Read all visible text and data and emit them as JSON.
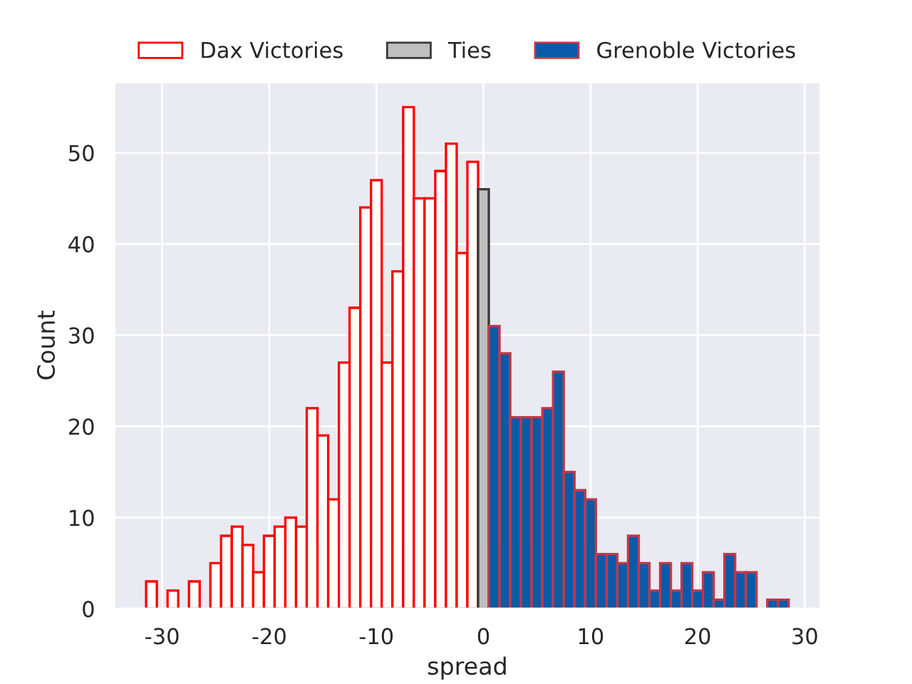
{
  "chart_data": {
    "type": "histogram",
    "xlabel": "spread",
    "ylabel": "Count",
    "bins": [
      -31.5,
      -30.5,
      -29.5,
      -28.5,
      -27.5,
      -26.5,
      -25.5,
      -24.5,
      -23.5,
      -22.5,
      -21.5,
      -20.5,
      -19.5,
      -18.5,
      -17.5,
      -16.5,
      -15.5,
      -14.5,
      -13.5,
      -12.5,
      -11.5,
      -10.5,
      -9.5,
      -8.5,
      -7.5,
      -6.5,
      -5.5,
      -4.5,
      -3.5,
      -2.5,
      -1.5,
      -0.5,
      0.5,
      1.5,
      2.5,
      3.5,
      4.5,
      5.5,
      6.5,
      7.5,
      8.5,
      9.5,
      10.5,
      11.5,
      12.5,
      13.5,
      14.5,
      15.5,
      16.5,
      17.5,
      18.5,
      19.5,
      20.5,
      21.5,
      22.5,
      23.5,
      24.5,
      25.5,
      26.5,
      27.5,
      28.5
    ],
    "series": [
      {
        "name": "Dax Victories",
        "color": "#ff0000",
        "values": [
          3,
          null,
          2,
          null,
          3,
          null,
          5,
          8,
          9,
          7,
          4,
          8,
          9,
          10,
          9,
          22,
          19,
          12,
          27,
          33,
          44,
          47,
          27,
          37,
          55,
          45,
          45,
          48,
          51,
          39,
          49,
          null,
          null,
          null,
          null,
          null,
          null,
          null,
          null,
          null,
          null,
          null,
          null,
          null,
          null,
          null,
          null,
          null,
          null,
          null,
          null,
          null,
          null,
          null,
          null,
          null,
          null,
          null,
          null,
          null
        ]
      },
      {
        "name": "Ties",
        "color": "#bfbfbf",
        "values": [
          null,
          null,
          null,
          null,
          null,
          null,
          null,
          null,
          null,
          null,
          null,
          null,
          null,
          null,
          null,
          null,
          null,
          null,
          null,
          null,
          null,
          null,
          null,
          null,
          null,
          null,
          null,
          null,
          null,
          null,
          null,
          46,
          null,
          null,
          null,
          null,
          null,
          null,
          null,
          null,
          null,
          null,
          null,
          null,
          null,
          null,
          null,
          null,
          null,
          null,
          null,
          null,
          null,
          null,
          null,
          null,
          null,
          null,
          null,
          null
        ]
      },
      {
        "name": "Grenoble Victories",
        "color": "#0b5aa8",
        "values": [
          null,
          null,
          null,
          null,
          null,
          null,
          null,
          null,
          null,
          null,
          null,
          null,
          null,
          null,
          null,
          null,
          null,
          null,
          null,
          null,
          null,
          null,
          null,
          null,
          null,
          null,
          null,
          null,
          null,
          null,
          null,
          null,
          31,
          28,
          21,
          21,
          21,
          22,
          26,
          15,
          13,
          12,
          6,
          6,
          5,
          8,
          5,
          2,
          5,
          2,
          5,
          2,
          4,
          1,
          6,
          4,
          4,
          null,
          1,
          1
        ]
      }
    ],
    "xlim": [
      -34.5,
      31.5
    ],
    "ylim": [
      0,
      57.75
    ],
    "xticks": [
      -30,
      -20,
      -10,
      0,
      10,
      20,
      30
    ],
    "yticks": [
      0,
      10,
      20,
      30,
      40,
      50
    ],
    "grid": true,
    "legend": "top"
  }
}
